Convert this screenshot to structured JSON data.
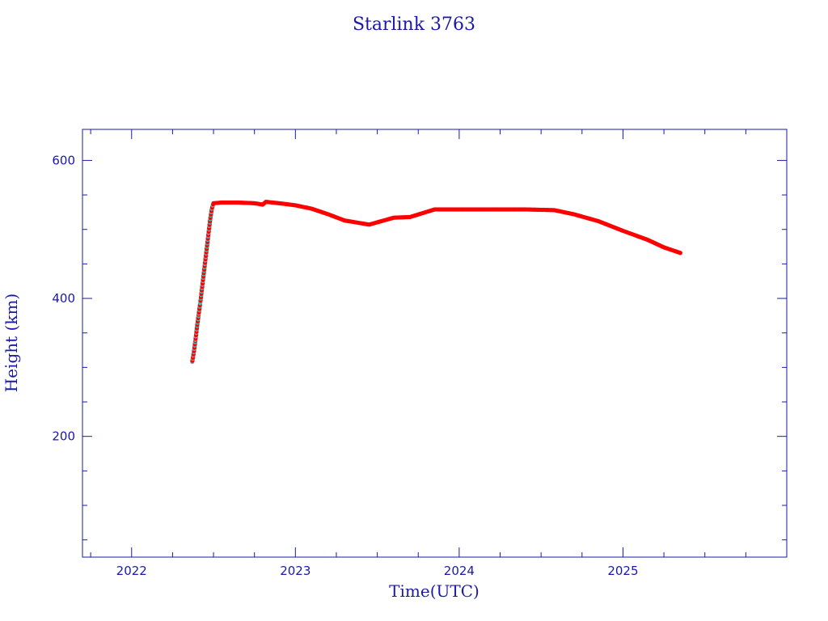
{
  "chart_data": {
    "type": "scatter",
    "title": "Starlink 3763",
    "xlabel": "Time(UTC)",
    "ylabel": "Height (km)",
    "xlim": [
      2021.7,
      2026.0
    ],
    "ylim": [
      25,
      645
    ],
    "x_ticks": [
      2022,
      2023,
      2024,
      2025
    ],
    "x_tick_labels": [
      "2022",
      "2023",
      "2024",
      "2025"
    ],
    "y_ticks": [
      200,
      400,
      600
    ],
    "y_tick_labels": [
      "200",
      "400",
      "600"
    ],
    "grid": false,
    "colors": {
      "axis": "#1a1aa6",
      "points": "#ff0000",
      "points_alt": "#40c0c0"
    },
    "series": [
      {
        "name": "",
        "points": [
          [
            2022.37,
            308
          ],
          [
            2022.38,
            322
          ],
          [
            2022.39,
            340
          ],
          [
            2022.4,
            360
          ],
          [
            2022.41,
            378
          ],
          [
            2022.42,
            395
          ],
          [
            2022.43,
            415
          ],
          [
            2022.44,
            435
          ],
          [
            2022.45,
            455
          ],
          [
            2022.46,
            475
          ],
          [
            2022.47,
            495
          ],
          [
            2022.48,
            515
          ],
          [
            2022.49,
            530
          ],
          [
            2022.5,
            538
          ],
          [
            2022.55,
            539
          ],
          [
            2022.65,
            539
          ],
          [
            2022.75,
            538
          ],
          [
            2022.8,
            536
          ],
          [
            2022.82,
            540
          ],
          [
            2022.9,
            538
          ],
          [
            2023.0,
            535
          ],
          [
            2023.1,
            530
          ],
          [
            2023.2,
            522
          ],
          [
            2023.3,
            513
          ],
          [
            2023.45,
            507
          ],
          [
            2023.6,
            517
          ],
          [
            2023.7,
            518
          ],
          [
            2023.85,
            529
          ],
          [
            2024.0,
            529
          ],
          [
            2024.2,
            529
          ],
          [
            2024.4,
            529
          ],
          [
            2024.58,
            528
          ],
          [
            2024.7,
            522
          ],
          [
            2024.85,
            512
          ],
          [
            2025.0,
            498
          ],
          [
            2025.15,
            485
          ],
          [
            2025.25,
            474
          ],
          [
            2025.35,
            466
          ]
        ]
      }
    ]
  }
}
